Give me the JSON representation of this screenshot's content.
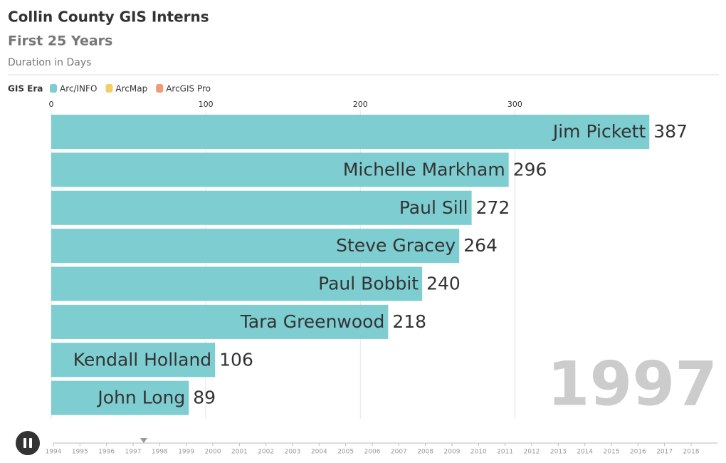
{
  "chart_data": {
    "type": "bar",
    "orientation": "horizontal",
    "title": "Collin County GIS Interns",
    "subtitle": "First 25 Years",
    "caption": "Duration in Days",
    "legend_title": "GIS Era",
    "legend": [
      {
        "name": "Arc/INFO",
        "color": "#7ecdd1"
      },
      {
        "name": "ArcMap",
        "color": "#f2ce6b"
      },
      {
        "name": "ArcGIS Pro",
        "color": "#ee9b78"
      }
    ],
    "categories": [
      "Jim Pickett",
      "Michelle Markham",
      "Paul Sill",
      "Steve Gracey",
      "Paul Bobbit",
      "Tara Greenwood",
      "Kendall Holland",
      "John Long"
    ],
    "values": [
      387,
      296,
      272,
      264,
      240,
      218,
      106,
      89
    ],
    "color": "#7ecdd1",
    "xlim": [
      0,
      432
    ],
    "xticks": [
      0,
      100,
      200,
      300
    ],
    "grid": true,
    "current_year": "1997",
    "timeline_years": [
      1994,
      1995,
      1996,
      1997,
      1998,
      1999,
      2000,
      2001,
      2002,
      2003,
      2004,
      2005,
      2006,
      2007,
      2008,
      2009,
      2010,
      2011,
      2012,
      2013,
      2014,
      2015,
      2016,
      2017,
      2018
    ],
    "timeline_position": 1997.4
  }
}
